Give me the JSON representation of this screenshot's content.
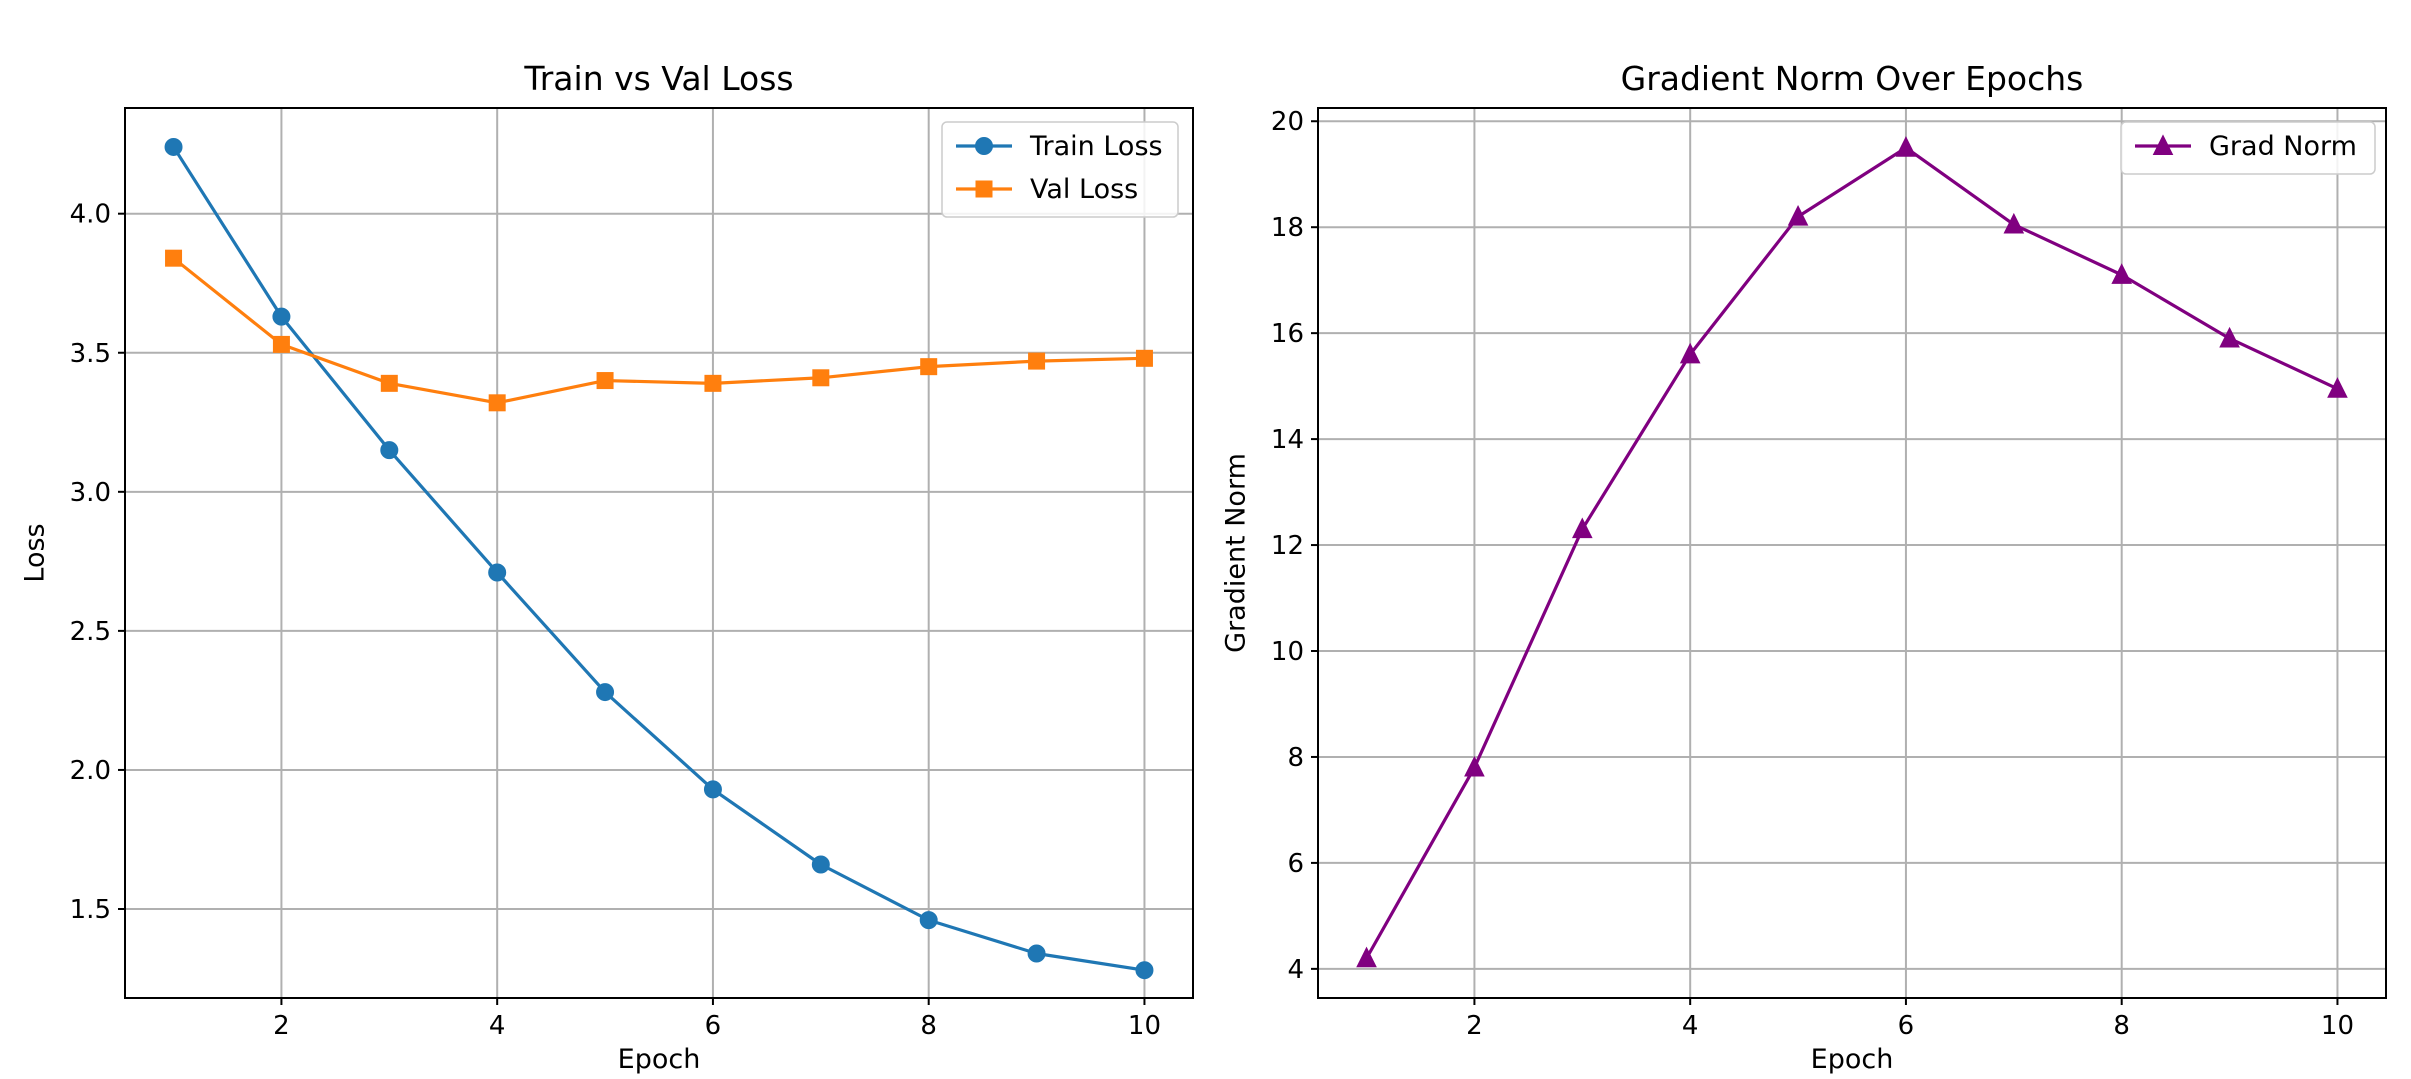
{
  "chart_data": [
    {
      "type": "line",
      "title": "Train vs Val Loss",
      "xlabel": "Epoch",
      "ylabel": "Loss",
      "x": [
        1,
        2,
        3,
        4,
        5,
        6,
        7,
        8,
        9,
        10
      ],
      "xlim": [
        0.55,
        10.45
      ],
      "ylim": [
        1.18,
        4.38
      ],
      "xticks": [
        2,
        4,
        6,
        8,
        10
      ],
      "yticks": [
        1.5,
        2.0,
        2.5,
        3.0,
        3.5,
        4.0
      ],
      "ytick_labels": [
        "1.5",
        "2.0",
        "2.5",
        "3.0",
        "3.5",
        "4.0"
      ],
      "grid": true,
      "legend_position": "top-right",
      "series": [
        {
          "name": "Train Loss",
          "color": "#1f77b4",
          "marker": "circle",
          "values": [
            4.24,
            3.63,
            3.15,
            2.71,
            2.28,
            1.93,
            1.66,
            1.46,
            1.34,
            1.28
          ]
        },
        {
          "name": "Val Loss",
          "color": "#ff7f0e",
          "marker": "square",
          "values": [
            3.84,
            3.53,
            3.39,
            3.32,
            3.4,
            3.39,
            3.41,
            3.45,
            3.47,
            3.48
          ]
        }
      ]
    },
    {
      "type": "line",
      "title": "Gradient Norm Over Epochs",
      "xlabel": "Epoch",
      "ylabel": "Gradient Norm",
      "x": [
        1,
        2,
        3,
        4,
        5,
        6,
        7,
        8,
        9,
        10
      ],
      "xlim": [
        0.55,
        10.45
      ],
      "ylim": [
        3.45,
        20.25
      ],
      "xticks": [
        2,
        4,
        6,
        8,
        10
      ],
      "yticks": [
        4,
        6,
        8,
        10,
        12,
        14,
        16,
        18,
        20
      ],
      "ytick_labels": [
        "4",
        "6",
        "8",
        "10",
        "12",
        "14",
        "16",
        "18",
        "20"
      ],
      "grid": true,
      "legend_position": "top-right",
      "series": [
        {
          "name": "Grad Norm",
          "color": "#800080",
          "marker": "triangle",
          "values": [
            4.2,
            7.8,
            12.3,
            15.6,
            18.2,
            19.5,
            18.05,
            17.1,
            15.9,
            14.95
          ]
        }
      ]
    }
  ]
}
